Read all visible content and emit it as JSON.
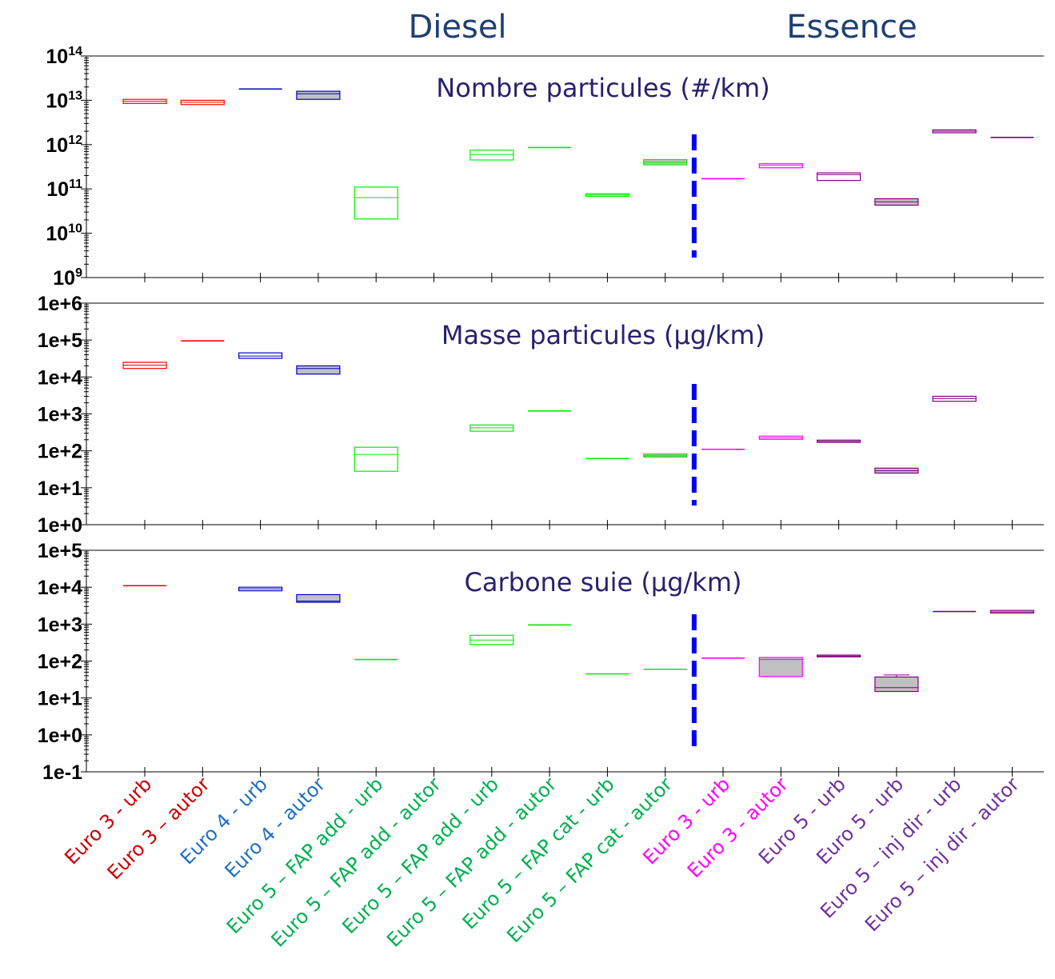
{
  "chart_data": {
    "type": "box",
    "group_labels": [
      {
        "name": "Diesel",
        "category_span": [
          0,
          9
        ]
      },
      {
        "name": "Essence",
        "category_span": [
          10,
          15
        ]
      }
    ],
    "group_separator_after_category": 9,
    "separator_color": "#0000ff",
    "categories": [
      {
        "label": "Euro 3 - urb",
        "color": "#cc0000"
      },
      {
        "label": "Euro 3 – autor",
        "color": "#cc0000"
      },
      {
        "label": "Euro 4 - urb",
        "color": "#1f6fc5"
      },
      {
        "label": "Euro 4 - autor",
        "color": "#1f6fc5"
      },
      {
        "label": "Euro 5 – FAP add - urb",
        "color": "#00b050"
      },
      {
        "label": "Euro 5 – FAP add - autor",
        "color": "#00b050"
      },
      {
        "label": "Euro 5 – FAP add - urb",
        "color": "#00b050"
      },
      {
        "label": "Euro 5 – FAP add - autor",
        "color": "#00b050"
      },
      {
        "label": "Euro 5 – FAP cat - urb",
        "color": "#00b050"
      },
      {
        "label": "Euro 5 – FAP cat - autor",
        "color": "#00b050"
      },
      {
        "label": "Euro 3 - urb",
        "color": "#ff00ff"
      },
      {
        "label": "Euro 3 - autor",
        "color": "#ff00ff"
      },
      {
        "label": "Euro 5 - urb",
        "color": "#7030a0"
      },
      {
        "label": "Euro 5 - urb",
        "color": "#7030a0"
      },
      {
        "label": "Euro 5 – inj dir - urb",
        "color": "#7030a0"
      },
      {
        "label": "Euro 5 – inj dir - autor",
        "color": "#7030a0"
      }
    ],
    "box_colors": [
      "#ff0000",
      "#ff0000",
      "#0000cc",
      "#0000cc",
      "#00ee00",
      "#00ee00",
      "#00ee00",
      "#00ee00",
      "#00ee00",
      "#00ee00",
      "#ff00ff",
      "#ff00ff",
      "#800080",
      "#800080",
      "#800080",
      "#800080"
    ],
    "shade_color": "#c0c0c0",
    "panels": [
      {
        "title": "Nombre particules (#/km)",
        "y_scale": "log",
        "ylim": [
          1000000000.0,
          100000000000000.0
        ],
        "tick_style": "power",
        "tick_labels": [
          {
            "base": "10",
            "exp": "14"
          },
          {
            "base": "10",
            "exp": "13"
          },
          {
            "base": "10",
            "exp": "12"
          },
          {
            "base": "10",
            "exp": "11"
          },
          {
            "base": "10",
            "exp": "10"
          },
          {
            "base": "10",
            "exp": "9"
          }
        ],
        "boxes": [
          {
            "category": 0,
            "low": 8500000000000.0,
            "median": 9500000000000.0,
            "high": 10500000000000.0
          },
          {
            "category": 1,
            "low": 8000000000000.0,
            "median": 9000000000000.0,
            "high": 10000000000000.0
          },
          {
            "category": 2,
            "low": 18000000000000.0,
            "median": 18000000000000.0,
            "high": 18000000000000.0
          },
          {
            "category": 3,
            "low": 10500000000000.0,
            "median": 14000000000000.0,
            "high": 16000000000000.0,
            "shaded": true
          },
          {
            "category": 4,
            "low": 21000000000.0,
            "median": 64000000000.0,
            "high": 110000000000.0
          },
          {
            "category": 6,
            "low": 450000000000.0,
            "median": 600000000000.0,
            "high": 750000000000.0
          },
          {
            "category": 7,
            "low": 860000000000.0,
            "median": 860000000000.0,
            "high": 860000000000.0
          },
          {
            "category": 8,
            "low": 68000000000.0,
            "median": 73000000000.0,
            "high": 78000000000.0
          },
          {
            "category": 9,
            "low": 350000000000.0,
            "median": 400000000000.0,
            "high": 460000000000.0,
            "shaded": true
          },
          {
            "category": 10,
            "low": 170000000000.0,
            "median": 170000000000.0,
            "high": 170000000000.0
          },
          {
            "category": 11,
            "low": 300000000000.0,
            "median": 340000000000.0,
            "high": 370000000000.0
          },
          {
            "category": 12,
            "low": 155000000000.0,
            "median": 210000000000.0,
            "high": 230000000000.0
          },
          {
            "category": 13,
            "low": 43000000000.0,
            "median": 51000000000.0,
            "high": 60000000000.0,
            "shaded": true
          },
          {
            "category": 14,
            "low": 1850000000000.0,
            "median": 2000000000000.0,
            "high": 2150000000000.0
          },
          {
            "category": 15,
            "low": 1400000000000.0,
            "median": 1450000000000.0,
            "high": 1500000000000.0
          }
        ]
      },
      {
        "title": "Masse particules (µg/km)",
        "y_scale": "log",
        "ylim": [
          1,
          1000000.0
        ],
        "tick_style": "plain",
        "tick_labels": [
          "1e+6",
          "1e+5",
          "1e+4",
          "1e+3",
          "1e+2",
          "1e+1",
          "1e+0"
        ],
        "boxes": [
          {
            "category": 0,
            "low": 17000,
            "median": 21000,
            "high": 25000
          },
          {
            "category": 1,
            "low": 92000,
            "median": 95000,
            "high": 98000
          },
          {
            "category": 2,
            "low": 32000,
            "median": 37000,
            "high": 45000
          },
          {
            "category": 3,
            "low": 12000,
            "median": 17000,
            "high": 20000,
            "shaded": true
          },
          {
            "category": 4,
            "low": 28,
            "median": 80,
            "high": 125
          },
          {
            "category": 6,
            "low": 340,
            "median": 420,
            "high": 500
          },
          {
            "category": 7,
            "low": 1200,
            "median": 1200,
            "high": 1200
          },
          {
            "category": 8,
            "low": 60,
            "median": 62,
            "high": 64
          },
          {
            "category": 9,
            "low": 68,
            "median": 74,
            "high": 82,
            "shaded": true
          },
          {
            "category": 10,
            "low": 110,
            "median": 110,
            "high": 110
          },
          {
            "category": 11,
            "low": 205,
            "median": 225,
            "high": 250
          },
          {
            "category": 12,
            "low": 170,
            "median": 180,
            "high": 195
          },
          {
            "category": 13,
            "low": 25,
            "median": 29,
            "high": 34,
            "shaded": true
          },
          {
            "category": 14,
            "low": 2200,
            "median": 2600,
            "high": 3000
          },
          {
            "category": 15,
            "low": null,
            "median": null,
            "high": null
          }
        ]
      },
      {
        "title": "Carbone suie (µg/km)",
        "y_scale": "log",
        "ylim": [
          0.1,
          100000.0
        ],
        "tick_style": "plain",
        "tick_labels": [
          "1e+5",
          "1e+4",
          "1e+3",
          "1e+2",
          "1e+1",
          "1e+0",
          "1e-1"
        ],
        "boxes": [
          {
            "category": 0,
            "low": 11000,
            "median": 11000,
            "high": 11000
          },
          {
            "category": 2,
            "low": 8000,
            "median": 9000,
            "high": 10000
          },
          {
            "category": 3,
            "low": 3900,
            "median": 4200,
            "high": 6300,
            "shaded": true
          },
          {
            "category": 4,
            "low": 110,
            "median": 110,
            "high": 110
          },
          {
            "category": 6,
            "low": 280,
            "median": 370,
            "high": 500
          },
          {
            "category": 7,
            "low": 950,
            "median": 950,
            "high": 950
          },
          {
            "category": 8,
            "low": 45,
            "median": 45,
            "high": 45
          },
          {
            "category": 9,
            "low": 60,
            "median": 60,
            "high": 60
          },
          {
            "category": 10,
            "low": 120,
            "median": 120,
            "high": 120
          },
          {
            "category": 11,
            "low": 38,
            "median": 110,
            "high": 125,
            "shaded": true
          },
          {
            "category": 12,
            "low": 130,
            "median": 137,
            "high": 145
          },
          {
            "category": 13,
            "low": 15,
            "median": 19,
            "high": 37,
            "whisker_high": 42,
            "shaded": true
          },
          {
            "category": 14,
            "low": 2100,
            "median": 2200,
            "high": 2300
          },
          {
            "category": 15,
            "low": 2000,
            "median": 2150,
            "high": 2350
          }
        ]
      }
    ]
  }
}
